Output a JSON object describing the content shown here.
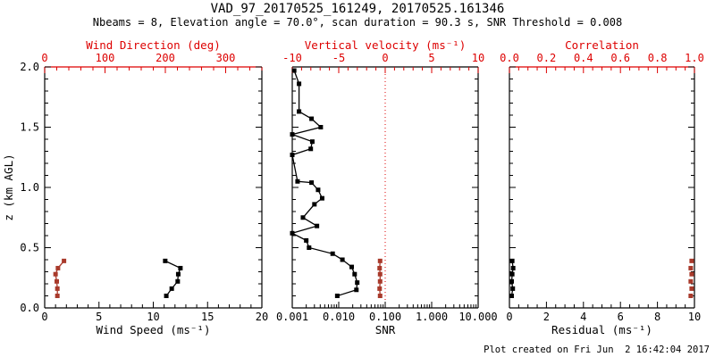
{
  "header": {
    "title": "VAD_97_20170525_161249, 20170525.161346",
    "subtitle": "Nbeams = 8, Elevation angle = 70.0°, scan duration = 90.3 s, SNR Threshold = 0.008"
  },
  "footer": {
    "created_text": "Plot created on Fri Jun  2 16:42:04 2017"
  },
  "colors": {
    "axis_red": "#dd0000",
    "marker_red": "#a93a2b",
    "black": "#000000",
    "background": "#ffffff"
  },
  "y_axis": {
    "label": "z (km AGL)",
    "range": [
      0,
      2
    ],
    "tick_values": [
      0,
      0.5,
      1,
      1.5,
      2
    ],
    "tick_labels": [
      "0.0",
      "0.5",
      "1.0",
      "1.5",
      "2.0"
    ],
    "minor_step": 0.1
  },
  "chart_data": [
    {
      "id": "wind",
      "type": "line",
      "bottom_axis": {
        "label": "Wind Speed (ms⁻¹)",
        "scale": "linear",
        "range": [
          0,
          20
        ],
        "tick_values": [
          0,
          5,
          10,
          15,
          20
        ],
        "tick_labels": [
          "0",
          "5",
          "10",
          "15",
          "20"
        ],
        "minor_step": 1,
        "color": "#000000",
        "line_color": "#000000"
      },
      "top_axis": {
        "label": "Wind Direction (deg)",
        "scale": "linear",
        "range": [
          0,
          360
        ],
        "tick_values": [
          0,
          100,
          200,
          300
        ],
        "tick_labels": [
          "0",
          "100",
          "200",
          "300"
        ],
        "minor_step": 20,
        "color": "#dd0000",
        "line_color": "#dd0000"
      },
      "series": [
        {
          "name": "wind-speed",
          "axis": "bottom",
          "color": "#000000",
          "line": true,
          "points": [
            [
              0.1,
              11.2
            ],
            [
              0.16,
              11.7
            ],
            [
              0.22,
              12.25
            ],
            [
              0.28,
              12.3
            ],
            [
              0.33,
              12.5
            ],
            [
              0.39,
              11.1
            ]
          ]
        },
        {
          "name": "wind-direction",
          "axis": "top",
          "color": "#a93a2b",
          "line": true,
          "points": [
            [
              0.1,
              21
            ],
            [
              0.16,
              21
            ],
            [
              0.22,
              20
            ],
            [
              0.28,
              18
            ],
            [
              0.33,
              22
            ],
            [
              0.39,
              32
            ]
          ]
        }
      ]
    },
    {
      "id": "snr",
      "type": "line",
      "bottom_axis": {
        "label": "SNR",
        "scale": "log",
        "range": [
          0.001,
          10
        ],
        "tick_values": [
          0.001,
          0.01,
          0.1,
          1,
          10
        ],
        "tick_labels": [
          "0.001",
          "0.010",
          "0.100",
          "1.000",
          "10.000"
        ],
        "color": "#000000",
        "line_color": "#000000"
      },
      "top_axis": {
        "label": "Vertical velocity (ms⁻¹)",
        "scale": "linear",
        "range": [
          -10,
          10
        ],
        "tick_values": [
          -10,
          -5,
          0,
          5,
          10
        ],
        "tick_labels": [
          "-10",
          "-5",
          "0",
          "5",
          "10"
        ],
        "minor_step": 1,
        "color": "#dd0000",
        "line_color": "#000000"
      },
      "ref_line": {
        "axis": "bottom",
        "value": 0.1,
        "color": "#dd0000",
        "style": "dotted"
      },
      "series": [
        {
          "name": "snr-profile",
          "axis": "bottom",
          "color": "#000000",
          "line": true,
          "points": [
            [
              0.1,
              0.0093
            ],
            [
              0.15,
              0.024
            ],
            [
              0.21,
              0.025
            ],
            [
              0.28,
              0.022
            ],
            [
              0.34,
              0.019
            ],
            [
              0.4,
              0.012
            ],
            [
              0.45,
              0.0074
            ],
            [
              0.5,
              0.0023
            ],
            [
              0.56,
              0.002
            ],
            [
              0.62,
              0.001
            ],
            [
              0.68,
              0.0034
            ],
            [
              0.75,
              0.0017
            ],
            [
              0.86,
              0.003
            ],
            [
              0.91,
              0.0044
            ],
            [
              0.98,
              0.0036
            ],
            [
              1.04,
              0.0026
            ],
            [
              1.05,
              0.0013
            ],
            [
              1.27,
              0.001
            ],
            [
              1.32,
              0.0025
            ],
            [
              1.38,
              0.0027
            ],
            [
              1.44,
              0.001
            ],
            [
              1.5,
              0.0041
            ],
            [
              1.57,
              0.0026
            ],
            [
              1.63,
              0.0014
            ],
            [
              1.86,
              0.0014
            ],
            [
              1.97,
              0.0011
            ]
          ]
        },
        {
          "name": "vertical-velocity",
          "axis": "top",
          "color": "#a93a2b",
          "line": true,
          "points": [
            [
              0.1,
              -0.55
            ],
            [
              0.16,
              -0.6
            ],
            [
              0.22,
              -0.55
            ],
            [
              0.28,
              -0.55
            ],
            [
              0.33,
              -0.6
            ],
            [
              0.39,
              -0.55
            ]
          ]
        }
      ]
    },
    {
      "id": "residual",
      "type": "line",
      "bottom_axis": {
        "label": "Residual (ms⁻¹)",
        "scale": "linear",
        "range": [
          0,
          10
        ],
        "tick_values": [
          0,
          2,
          4,
          6,
          8,
          10
        ],
        "tick_labels": [
          "0",
          "2",
          "4",
          "6",
          "8",
          "10"
        ],
        "minor_step": 0.5,
        "color": "#000000",
        "line_color": "#000000"
      },
      "top_axis": {
        "label": "Correlation",
        "scale": "linear",
        "range": [
          0,
          1
        ],
        "tick_values": [
          0,
          0.2,
          0.4,
          0.6,
          0.8,
          1.0
        ],
        "tick_labels": [
          "0.0",
          "0.2",
          "0.4",
          "0.6",
          "0.8",
          "1.0"
        ],
        "minor_step": 0.05,
        "color": "#dd0000",
        "line_color": "#dd0000"
      },
      "series": [
        {
          "name": "residual",
          "axis": "bottom",
          "color": "#000000",
          "line": true,
          "points": [
            [
              0.1,
              0.12
            ],
            [
              0.16,
              0.18
            ],
            [
              0.22,
              0.12
            ],
            [
              0.28,
              0.15
            ],
            [
              0.33,
              0.2
            ],
            [
              0.39,
              0.15
            ]
          ]
        },
        {
          "name": "correlation",
          "axis": "top",
          "color": "#a93a2b",
          "line": false,
          "points": [
            [
              0.1,
              0.98
            ],
            [
              0.16,
              0.985
            ],
            [
              0.22,
              0.98
            ],
            [
              0.28,
              0.985
            ],
            [
              0.33,
              0.98
            ],
            [
              0.39,
              0.985
            ]
          ]
        }
      ]
    }
  ]
}
